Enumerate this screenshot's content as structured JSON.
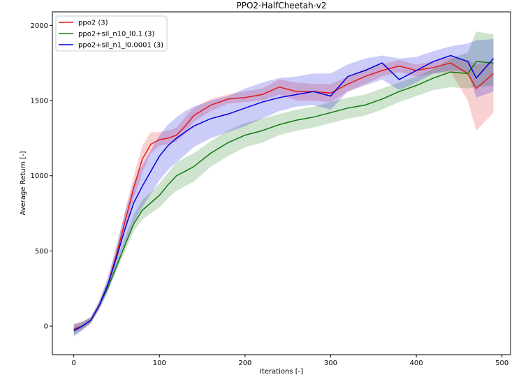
{
  "chart_data": {
    "type": "line",
    "title": "PPO2-HalfCheetah-v2",
    "xlabel": "Iterations [-]",
    "ylabel": "Average Return [-]",
    "xlim": [
      -25,
      510
    ],
    "ylim": [
      -190,
      2090
    ],
    "xticks": [
      0,
      100,
      200,
      300,
      400,
      500
    ],
    "yticks": [
      0,
      500,
      1000,
      1500,
      2000
    ],
    "grid": false,
    "legend_position": "top-left",
    "series": [
      {
        "name": "ppo2 (3)",
        "color": "#e41a1c",
        "x": [
          0,
          10,
          20,
          30,
          40,
          50,
          60,
          70,
          80,
          90,
          100,
          110,
          120,
          130,
          140,
          160,
          180,
          200,
          220,
          240,
          260,
          280,
          300,
          320,
          340,
          360,
          380,
          400,
          420,
          440,
          460,
          470,
          490
        ],
        "y": [
          -20,
          0,
          40,
          140,
          280,
          480,
          700,
          920,
          1110,
          1210,
          1240,
          1250,
          1270,
          1330,
          1400,
          1470,
          1510,
          1520,
          1540,
          1590,
          1560,
          1560,
          1550,
          1610,
          1660,
          1700,
          1730,
          1700,
          1720,
          1750,
          1680,
          1580,
          1680
        ],
        "lower": [
          -50,
          -20,
          20,
          120,
          250,
          440,
          640,
          850,
          1020,
          1150,
          1200,
          1210,
          1230,
          1280,
          1360,
          1430,
          1480,
          1490,
          1500,
          1540,
          1500,
          1500,
          1490,
          1560,
          1610,
          1660,
          1690,
          1660,
          1680,
          1690,
          1500,
          1300,
          1420
        ],
        "upper": [
          20,
          30,
          60,
          170,
          310,
          520,
          770,
          1000,
          1200,
          1290,
          1290,
          1300,
          1320,
          1390,
          1450,
          1510,
          1540,
          1560,
          1580,
          1640,
          1620,
          1610,
          1610,
          1660,
          1710,
          1740,
          1770,
          1740,
          1760,
          1790,
          1770,
          1740,
          1760
        ]
      },
      {
        "name": "ppo2+sil_n10_l0.1 (3)",
        "color": "#117a11",
        "x": [
          0,
          10,
          20,
          30,
          40,
          50,
          60,
          70,
          80,
          90,
          100,
          110,
          120,
          130,
          140,
          160,
          180,
          200,
          220,
          240,
          260,
          280,
          300,
          320,
          340,
          360,
          380,
          400,
          420,
          440,
          460,
          470,
          490
        ],
        "y": [
          -30,
          0,
          40,
          140,
          260,
          400,
          540,
          680,
          770,
          820,
          870,
          940,
          1000,
          1030,
          1060,
          1150,
          1220,
          1270,
          1300,
          1340,
          1370,
          1390,
          1420,
          1450,
          1470,
          1510,
          1560,
          1600,
          1650,
          1690,
          1680,
          1760,
          1750
        ],
        "lower": [
          -60,
          -20,
          20,
          120,
          240,
          370,
          500,
          630,
          710,
          750,
          790,
          850,
          900,
          930,
          960,
          1060,
          1130,
          1190,
          1220,
          1270,
          1300,
          1320,
          1350,
          1380,
          1400,
          1440,
          1490,
          1530,
          1570,
          1590,
          1580,
          1590,
          1600
        ],
        "upper": [
          0,
          20,
          60,
          160,
          290,
          440,
          590,
          740,
          840,
          890,
          950,
          1020,
          1090,
          1120,
          1150,
          1230,
          1300,
          1350,
          1380,
          1410,
          1440,
          1460,
          1490,
          1520,
          1540,
          1580,
          1620,
          1660,
          1710,
          1780,
          1820,
          1960,
          1940
        ]
      },
      {
        "name": "ppo2+sil_n1_l0.0001 (3)",
        "color": "#0000dd",
        "x": [
          0,
          10,
          20,
          30,
          40,
          50,
          60,
          70,
          80,
          90,
          100,
          110,
          120,
          130,
          140,
          160,
          180,
          200,
          220,
          240,
          260,
          280,
          300,
          320,
          340,
          360,
          380,
          400,
          420,
          440,
          460,
          470,
          490
        ],
        "y": [
          -30,
          0,
          40,
          140,
          280,
          460,
          650,
          820,
          930,
          1030,
          1130,
          1200,
          1250,
          1290,
          1330,
          1380,
          1410,
          1450,
          1490,
          1520,
          1540,
          1560,
          1530,
          1660,
          1700,
          1750,
          1640,
          1700,
          1760,
          1800,
          1760,
          1650,
          1780
        ],
        "lower": [
          -70,
          -30,
          20,
          110,
          230,
          380,
          540,
          690,
          790,
          880,
          970,
          1040,
          1090,
          1140,
          1190,
          1250,
          1290,
          1330,
          1380,
          1430,
          1460,
          1470,
          1440,
          1560,
          1600,
          1640,
          1570,
          1620,
          1680,
          1700,
          1690,
          1520,
          1560
        ],
        "upper": [
          10,
          30,
          60,
          170,
          330,
          540,
          760,
          950,
          1070,
          1170,
          1270,
          1340,
          1390,
          1430,
          1460,
          1500,
          1530,
          1580,
          1620,
          1650,
          1660,
          1680,
          1680,
          1740,
          1780,
          1800,
          1780,
          1790,
          1830,
          1860,
          1880,
          1900,
          1910
        ]
      }
    ]
  }
}
